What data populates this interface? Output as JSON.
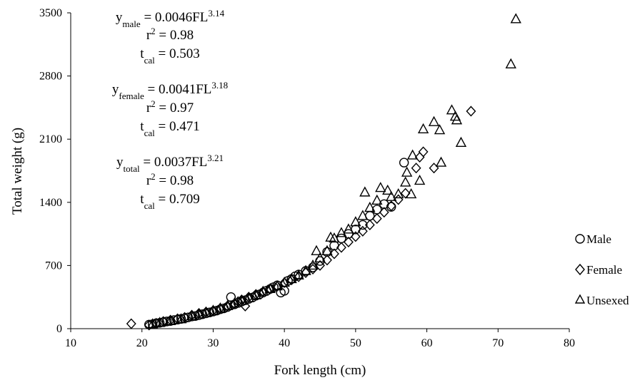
{
  "chart_data": {
    "type": "scatter",
    "xlabel": "Fork length (cm)",
    "ylabel": "Total weight (g)",
    "xlim": [
      10,
      80
    ],
    "ylim": [
      0,
      3500
    ],
    "xticks": [
      "10",
      "20",
      "30",
      "40",
      "50",
      "60",
      "70",
      "80"
    ],
    "yticks": [
      "0",
      "700",
      "1400",
      "2100",
      "2800",
      "3500"
    ],
    "legend_position": "right",
    "grid": false,
    "equations": [
      {
        "name": "male",
        "y_main": "y",
        "y_sub": "male",
        "eq_main": " = 0.0046FL",
        "eq_sup": "3.14",
        "r2_main": "r",
        "r2_sup": "2",
        "r2_rest": " = 0.98",
        "t_main": "t",
        "t_sub": "cal",
        "t_rest": " = 0.503"
      },
      {
        "name": "female",
        "y_main": "y",
        "y_sub": "female",
        "eq_main": " = 0.0041FL",
        "eq_sup": "3.18",
        "r2_main": "r",
        "r2_sup": "2",
        "r2_rest": " = 0.97",
        "t_main": "t",
        "t_sub": "cal",
        "t_rest": " = 0.471"
      },
      {
        "name": "total",
        "y_main": "y",
        "y_sub": "total",
        "eq_main": " = 0.0037FL",
        "eq_sup": "3.21",
        "r2_main": "r",
        "r2_sup": "2",
        "r2_rest": " = 0.98",
        "t_main": "t",
        "t_sub": "cal",
        "t_rest": " = 0.709"
      }
    ],
    "series": [
      {
        "name": "Male",
        "marker": "circle",
        "points": [
          [
            21,
            45
          ],
          [
            21.5,
            50
          ],
          [
            22,
            60
          ],
          [
            22.5,
            65
          ],
          [
            23,
            72
          ],
          [
            23.5,
            80
          ],
          [
            24,
            85
          ],
          [
            24.5,
            95
          ],
          [
            25,
            100
          ],
          [
            25.5,
            108
          ],
          [
            26,
            115
          ],
          [
            26.5,
            125
          ],
          [
            27,
            135
          ],
          [
            27.5,
            140
          ],
          [
            28,
            150
          ],
          [
            28.5,
            160
          ],
          [
            29,
            170
          ],
          [
            29.5,
            180
          ],
          [
            30,
            190
          ],
          [
            30.5,
            200
          ],
          [
            31,
            215
          ],
          [
            31.5,
            225
          ],
          [
            32,
            240
          ],
          [
            32.5,
            260
          ],
          [
            32.5,
            350
          ],
          [
            33,
            270
          ],
          [
            33.5,
            285
          ],
          [
            34,
            300
          ],
          [
            34.5,
            315
          ],
          [
            35,
            330
          ],
          [
            35.5,
            345
          ],
          [
            36,
            365
          ],
          [
            36.5,
            380
          ],
          [
            37,
            400
          ],
          [
            37.5,
            420
          ],
          [
            38,
            440
          ],
          [
            38.5,
            460
          ],
          [
            39,
            480
          ],
          [
            39.5,
            400
          ],
          [
            40,
            420
          ],
          [
            40.5,
            530
          ],
          [
            41,
            550
          ],
          [
            41.5,
            580
          ],
          [
            42,
            600
          ],
          [
            43,
            640
          ],
          [
            44,
            680
          ],
          [
            45,
            750
          ],
          [
            46,
            850
          ],
          [
            47,
            920
          ],
          [
            48,
            1000
          ],
          [
            49,
            1050
          ],
          [
            50,
            1100
          ],
          [
            51,
            1150
          ],
          [
            52,
            1250
          ],
          [
            53,
            1320
          ],
          [
            54,
            1380
          ],
          [
            55,
            1350
          ],
          [
            56.8,
            1840
          ]
        ]
      },
      {
        "name": "Female",
        "marker": "diamond",
        "points": [
          [
            18.5,
            55
          ],
          [
            21,
            40
          ],
          [
            22,
            60
          ],
          [
            23,
            80
          ],
          [
            24,
            95
          ],
          [
            25,
            110
          ],
          [
            26,
            125
          ],
          [
            27,
            150
          ],
          [
            28,
            170
          ],
          [
            29,
            185
          ],
          [
            30,
            200
          ],
          [
            31,
            225
          ],
          [
            32,
            250
          ],
          [
            33,
            275
          ],
          [
            33.5,
            300
          ],
          [
            34,
            320
          ],
          [
            34.5,
            250
          ],
          [
            35,
            350
          ],
          [
            36,
            380
          ],
          [
            37,
            410
          ],
          [
            38,
            440
          ],
          [
            39,
            470
          ],
          [
            40,
            510
          ],
          [
            41,
            540
          ],
          [
            42,
            575
          ],
          [
            43,
            620
          ],
          [
            44,
            660
          ],
          [
            45,
            700
          ],
          [
            46,
            760
          ],
          [
            47,
            830
          ],
          [
            48,
            900
          ],
          [
            49,
            960
          ],
          [
            50,
            1020
          ],
          [
            51,
            1080
          ],
          [
            52,
            1150
          ],
          [
            53,
            1220
          ],
          [
            54,
            1290
          ],
          [
            55,
            1360
          ],
          [
            56,
            1430
          ],
          [
            57,
            1500
          ],
          [
            58.5,
            1780
          ],
          [
            59,
            1900
          ],
          [
            59.5,
            1960
          ],
          [
            61,
            1780
          ],
          [
            66.2,
            2410
          ]
        ]
      },
      {
        "name": "Unsexed",
        "marker": "triangle",
        "points": [
          [
            21.5,
            50
          ],
          [
            22.5,
            65
          ],
          [
            24,
            85
          ],
          [
            25.5,
            105
          ],
          [
            27,
            140
          ],
          [
            28,
            160
          ],
          [
            29,
            180
          ],
          [
            30,
            200
          ],
          [
            31,
            225
          ],
          [
            32,
            250
          ],
          [
            33,
            280
          ],
          [
            34,
            310
          ],
          [
            35,
            340
          ],
          [
            36,
            370
          ],
          [
            37,
            410
          ],
          [
            38,
            440
          ],
          [
            39,
            470
          ],
          [
            40,
            510
          ],
          [
            41,
            550
          ],
          [
            42,
            590
          ],
          [
            43,
            640
          ],
          [
            44,
            700
          ],
          [
            44.5,
            860
          ],
          [
            45,
            780
          ],
          [
            46,
            860
          ],
          [
            46.5,
            1010
          ],
          [
            47,
            1000
          ],
          [
            48,
            1060
          ],
          [
            49,
            1100
          ],
          [
            50,
            1180
          ],
          [
            51,
            1250
          ],
          [
            51.3,
            1510
          ],
          [
            52,
            1340
          ],
          [
            53,
            1420
          ],
          [
            53.5,
            1560
          ],
          [
            54.5,
            1530
          ],
          [
            55,
            1460
          ],
          [
            56,
            1490
          ],
          [
            57,
            1620
          ],
          [
            57.2,
            1730
          ],
          [
            57.8,
            1490
          ],
          [
            58,
            1920
          ],
          [
            59,
            1640
          ],
          [
            59.5,
            2210
          ],
          [
            61,
            2290
          ],
          [
            61.8,
            2200
          ],
          [
            62,
            1840
          ],
          [
            63.5,
            2420
          ],
          [
            64,
            2350
          ],
          [
            64.2,
            2310
          ],
          [
            64.8,
            2060
          ],
          [
            71.8,
            2930
          ],
          [
            72.5,
            3430
          ]
        ]
      }
    ]
  }
}
